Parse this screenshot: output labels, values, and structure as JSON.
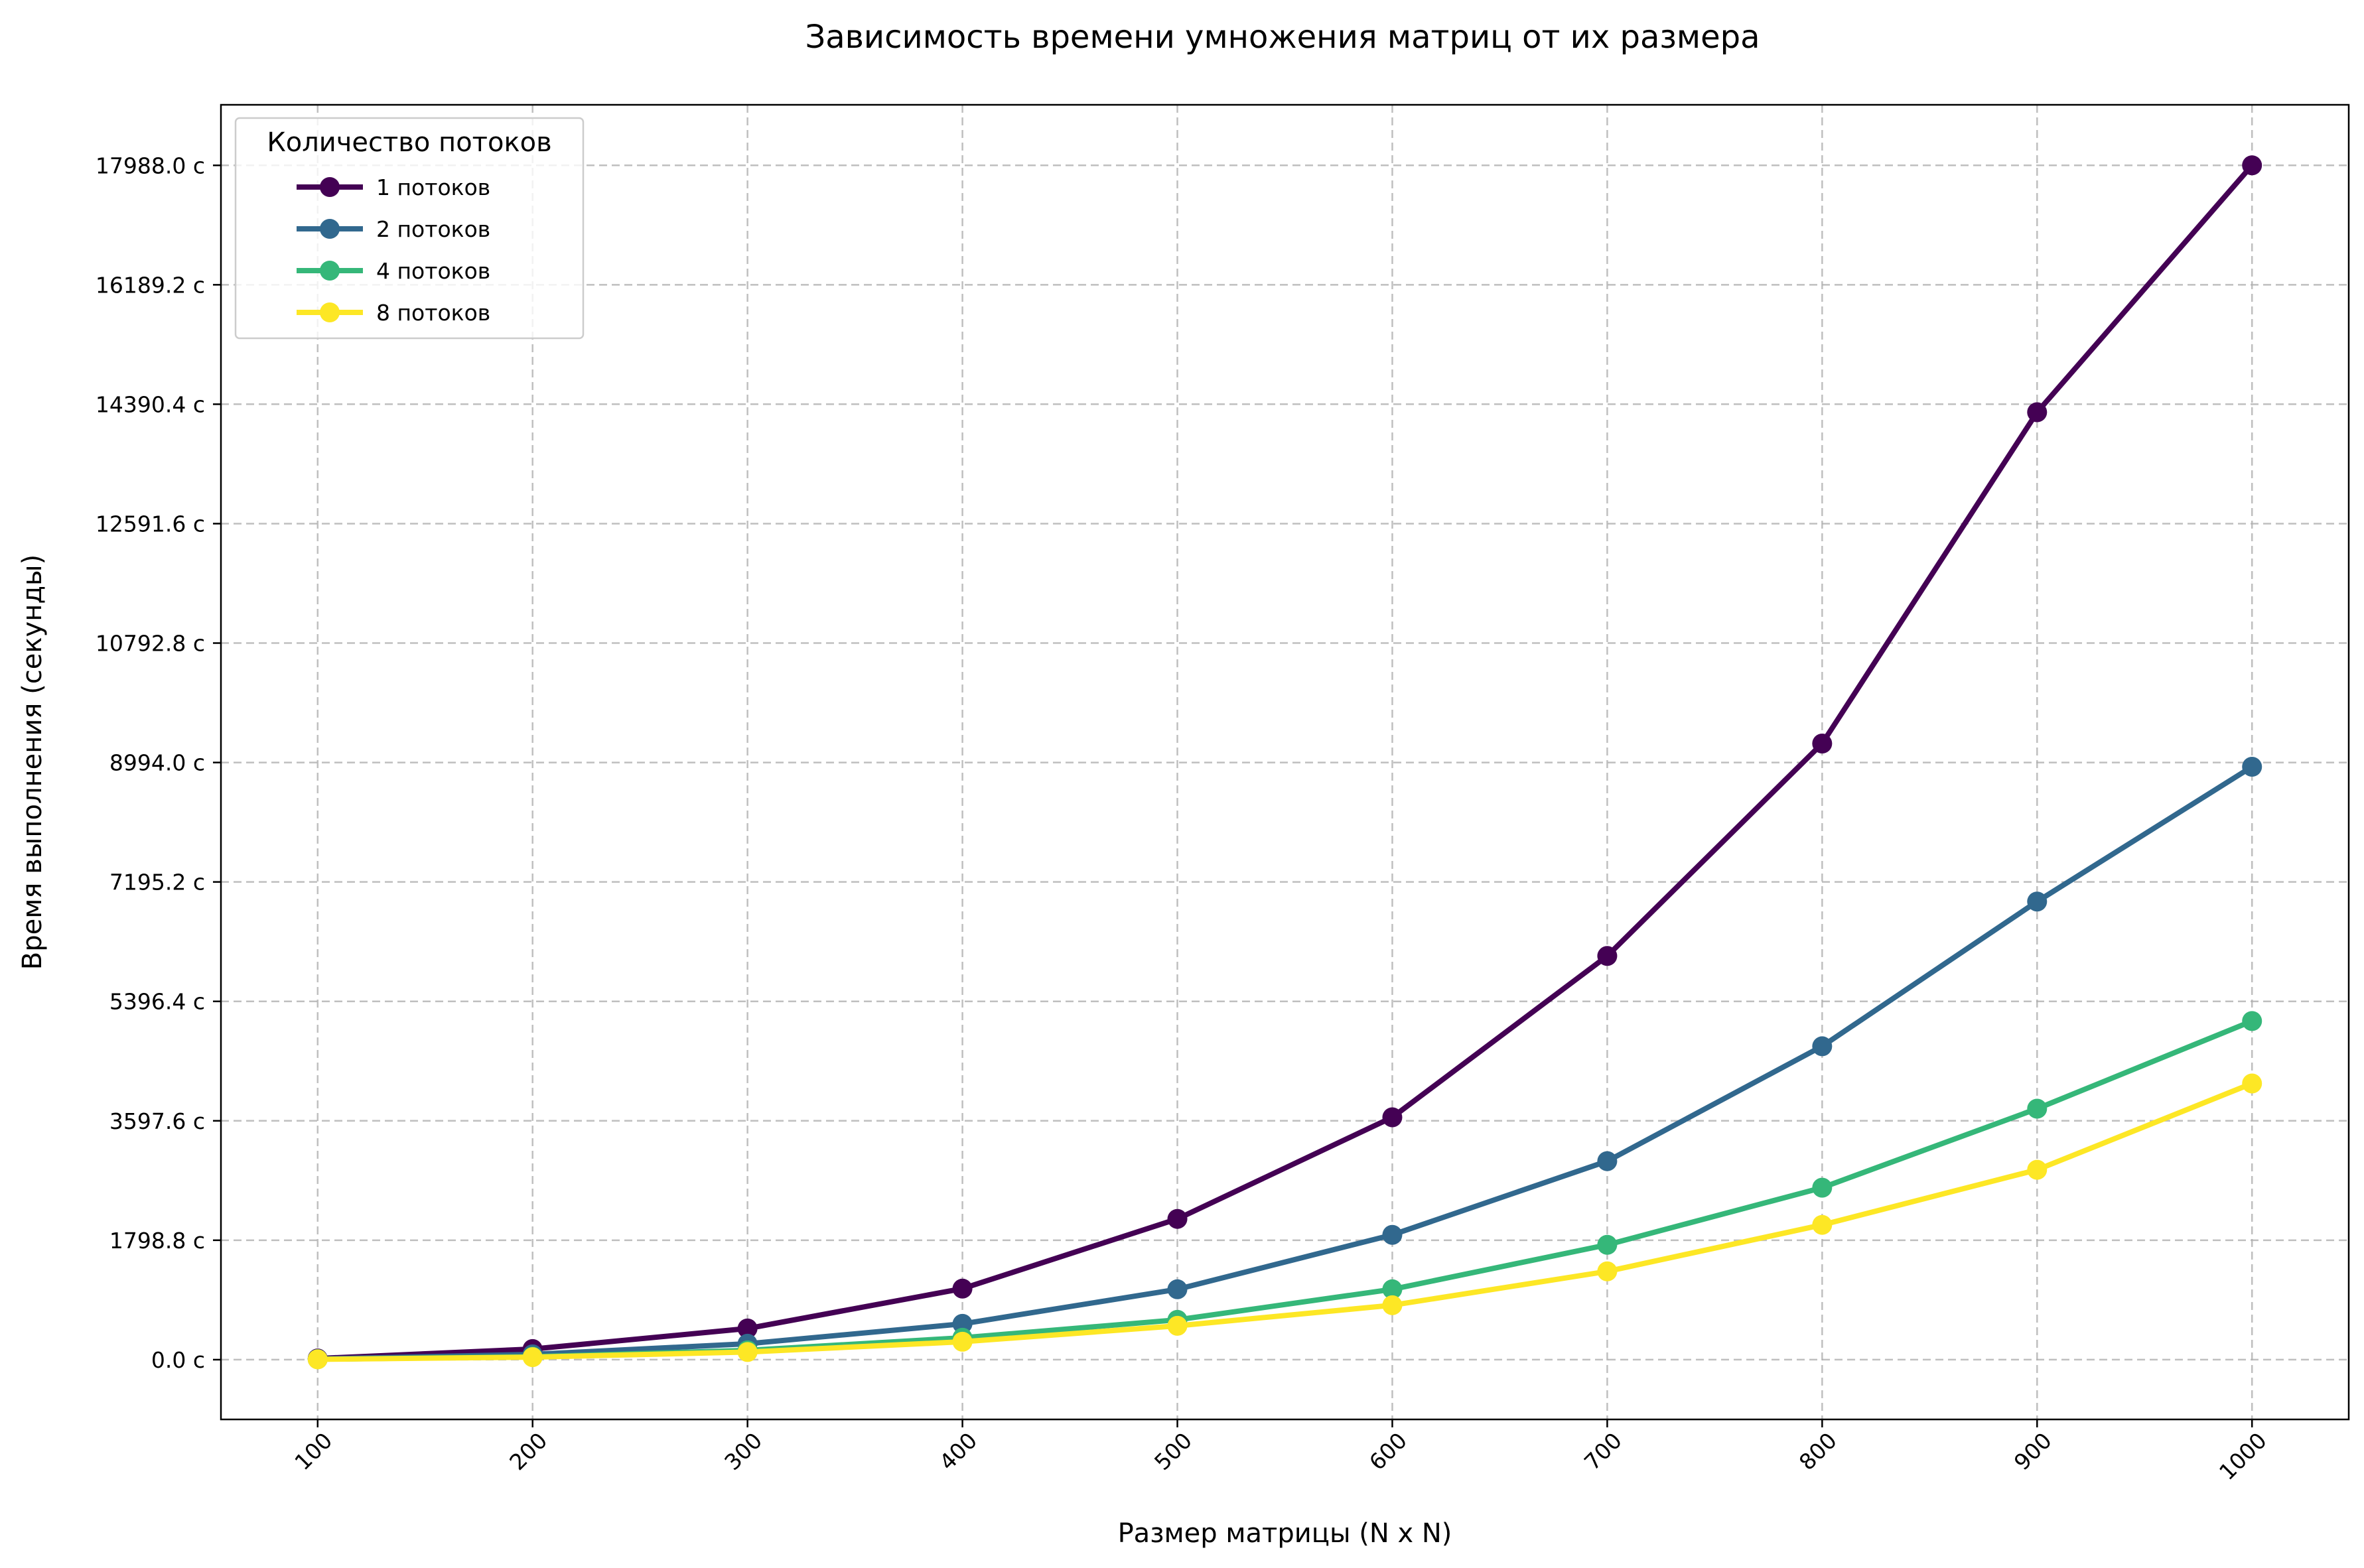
{
  "chart_data": {
    "type": "line",
    "title": "Зависимость времени умножения матриц от их размера",
    "xlabel": "Размер матрицы (N x N)",
    "ylabel": "Время выполнения (секунды)",
    "x": [
      100,
      200,
      300,
      400,
      500,
      600,
      700,
      800,
      900,
      1000
    ],
    "x_tick_labels": [
      "100",
      "200",
      "300",
      "400",
      "500",
      "600",
      "700",
      "800",
      "900",
      "1000"
    ],
    "y_ticks": [
      0.0,
      1798.8,
      3597.6,
      5396.4,
      7195.2,
      8994.0,
      10792.8,
      12591.6,
      14390.4,
      16189.2,
      17988.0
    ],
    "y_tick_labels": [
      "0.0 с",
      "1798.8 с",
      "3597.6 с",
      "5396.4 с",
      "7195.2 с",
      "8994.0 с",
      "10792.8 с",
      "12591.6 с",
      "14390.4 с",
      "16189.2 с",
      "17988.0 с"
    ],
    "xlim": [
      55,
      1045
    ],
    "ylim": [
      -900,
      18900
    ],
    "grid": true,
    "legend": {
      "title": "Количество потоков",
      "position": "top-left"
    },
    "series": [
      {
        "name": "1 потоков",
        "color": "#440154",
        "values": [
          18,
          160,
          470,
          1070,
          2120,
          3650,
          6080,
          9280,
          14270,
          17988
        ]
      },
      {
        "name": "2 потоков",
        "color": "#31688e",
        "values": [
          10,
          80,
          240,
          540,
          1060,
          1880,
          2990,
          4720,
          6900,
          8930
        ]
      },
      {
        "name": "4 потоков",
        "color": "#35b779",
        "values": [
          6,
          45,
          140,
          330,
          600,
          1060,
          1730,
          2590,
          3780,
          5100
        ]
      },
      {
        "name": "8 потоков",
        "color": "#fde725",
        "values": [
          5,
          38,
          115,
          270,
          510,
          820,
          1330,
          2030,
          2860,
          4160
        ]
      }
    ]
  }
}
